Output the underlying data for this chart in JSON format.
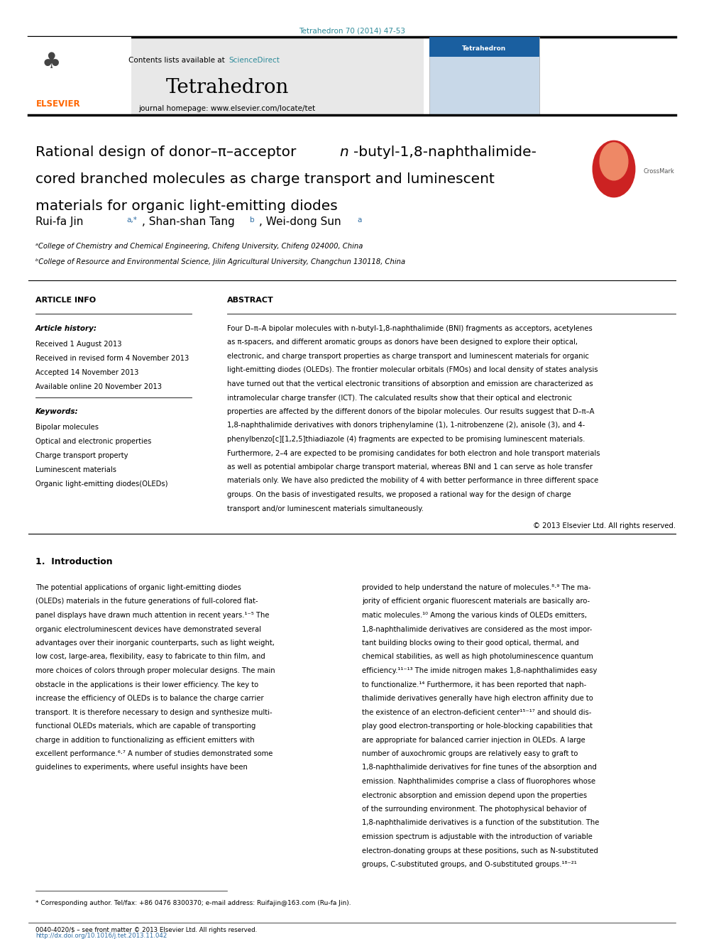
{
  "page_width": 9.92,
  "page_height": 13.23,
  "bg_color": "#ffffff",
  "journal_ref_color": "#2e8b9a",
  "journal_ref": "Tetrahedron 70 (2014) 47-53",
  "header_bg": "#e8e8e8",
  "contents_text": "Contents lists available at ",
  "sciencedirect_text": "ScienceDirect",
  "sciencedirect_color": "#2e8b9a",
  "journal_name": "Tetrahedron",
  "homepage_text": "journal homepage: www.elsevier.com/locate/tet",
  "elsevier_color": "#ff6600",
  "section_article_info": "ARTICLE INFO",
  "section_abstract": "ABSTRACT",
  "article_history_label": "Article history:",
  "received": "Received 1 August 2013",
  "received_revised": "Received in revised form 4 November 2013",
  "accepted": "Accepted 14 November 2013",
  "available": "Available online 20 November 2013",
  "keywords_label": "Keywords:",
  "keywords": [
    "Bipolar molecules",
    "Optical and electronic properties",
    "Charge transport property",
    "Luminescent materials",
    "Organic light-emitting diodes(OLEDs)"
  ],
  "copyright": "© 2013 Elsevier Ltd. All rights reserved.",
  "section1_title": "1.  Introduction",
  "affil_a": "ᵃCollege of Chemistry and Chemical Engineering, Chifeng University, Chifeng 024000, China",
  "affil_b": "ᵇCollege of Resource and Environmental Science, Jilin Agricultural University, Changchun 130118, China",
  "footnote": "* Corresponding author. Tel/fax: +86 0476 8300370; e-mail address: Ruifajin@163.com (Ru-fa Jin).",
  "footer_issn": "0040-4020/$ – see front matter © 2013 Elsevier Ltd. All rights reserved.",
  "footer_doi": "http://dx.doi.org/10.1016/j.tet.2013.11.042",
  "footer_doi_color": "#2e6da4"
}
